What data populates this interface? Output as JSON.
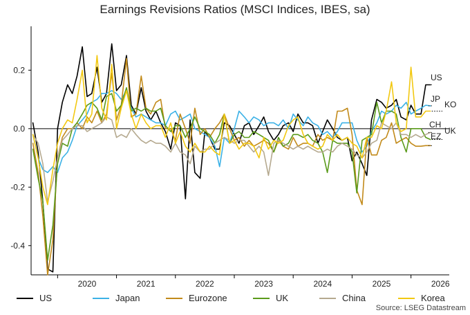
{
  "chart_data": {
    "type": "line",
    "title": "Earnings Revisions Ratios (MSCI Indices, IBES, sa)",
    "source": "Source: LSEG Datastream",
    "xlabel": "",
    "ylabel": "",
    "ylim": [
      -0.5,
      0.35
    ],
    "yticks": [
      0.2,
      0.0,
      -0.2,
      -0.4
    ],
    "ytick_labels": [
      "0.2",
      "0.0",
      "-0.2",
      "-0.4"
    ],
    "xlim": [
      2019.55,
      2026.65
    ],
    "xticks": [
      2020,
      2021,
      2022,
      2023,
      2024,
      2025,
      2026
    ],
    "xtick_labels": [
      "2020",
      "2021",
      "2022",
      "2023",
      "2024",
      "2025",
      "2026"
    ],
    "grid": false,
    "legend": "bottom",
    "end_labels": [
      {
        "text": "US",
        "y": 0.15
      },
      {
        "text": "JP",
        "y": 0.078
      },
      {
        "text": "KO",
        "y": 0.06
      },
      {
        "text": "CH",
        "y": -0.013
      },
      {
        "text": "UK",
        "y": -0.037
      },
      {
        "text": "EZ",
        "y": -0.058
      }
    ],
    "series": [
      {
        "name": "US",
        "color": "#000000",
        "x": [
          2019.58,
          2019.67,
          2019.75,
          2019.83,
          2019.92,
          2020.0,
          2020.08,
          2020.17,
          2020.25,
          2020.33,
          2020.42,
          2020.5,
          2020.58,
          2020.67,
          2020.75,
          2020.83,
          2020.92,
          2021.0,
          2021.08,
          2021.17,
          2021.25,
          2021.33,
          2021.42,
          2021.5,
          2021.58,
          2021.67,
          2021.75,
          2021.83,
          2021.92,
          2022.0,
          2022.08,
          2022.17,
          2022.25,
          2022.33,
          2022.42,
          2022.5,
          2022.58,
          2022.67,
          2022.75,
          2022.83,
          2022.92,
          2023.0,
          2023.08,
          2023.17,
          2023.25,
          2023.33,
          2023.42,
          2023.5,
          2023.58,
          2023.67,
          2023.75,
          2023.83,
          2023.92,
          2024.0,
          2024.08,
          2024.17,
          2024.25,
          2024.33,
          2024.42,
          2024.5,
          2024.58,
          2024.67,
          2024.75,
          2024.83,
          2024.92,
          2025.0,
          2025.08,
          2025.17,
          2025.25,
          2025.33,
          2025.42,
          2025.5,
          2025.58,
          2025.67,
          2025.75,
          2025.83,
          2025.92,
          2026.0,
          2026.08,
          2026.17,
          2026.25,
          2026.33
        ],
        "values": [
          0.02,
          -0.08,
          -0.25,
          -0.48,
          -0.49,
          0.0,
          0.09,
          0.15,
          0.12,
          0.18,
          0.28,
          0.11,
          0.12,
          0.21,
          0.09,
          0.12,
          0.29,
          0.13,
          0.15,
          0.25,
          0.08,
          0.05,
          0.14,
          0.06,
          0.03,
          0.06,
          0.02,
          -0.01,
          -0.07,
          0.02,
          0.01,
          -0.24,
          0.03,
          -0.15,
          -0.17,
          -0.01,
          -0.03,
          -0.07,
          -0.07,
          0.02,
          0.01,
          -0.02,
          -0.05,
          0.01,
          0.02,
          -0.02,
          0.01,
          0.04,
          -0.01,
          -0.04,
          -0.02,
          0.01,
          0.02,
          -0.01,
          0.05,
          0.02,
          0.02,
          0.01,
          -0.05,
          -0.01,
          0.03,
          0.0,
          -0.03,
          -0.04,
          -0.03,
          -0.11,
          -0.08,
          -0.12,
          -0.16,
          0.03,
          0.1,
          0.09,
          0.07,
          0.08,
          0.1,
          0.04,
          0.03,
          0.08,
          0.05,
          0.05,
          0.15,
          0.15
        ]
      },
      {
        "name": "Japan",
        "color": "#3bb1e6",
        "x": [
          2019.58,
          2019.67,
          2019.75,
          2019.83,
          2019.92,
          2020.0,
          2020.08,
          2020.17,
          2020.25,
          2020.33,
          2020.42,
          2020.5,
          2020.58,
          2020.67,
          2020.75,
          2020.83,
          2020.92,
          2021.0,
          2021.08,
          2021.17,
          2021.25,
          2021.33,
          2021.42,
          2021.5,
          2021.58,
          2021.67,
          2021.75,
          2021.83,
          2021.92,
          2022.0,
          2022.08,
          2022.17,
          2022.25,
          2022.33,
          2022.42,
          2022.5,
          2022.58,
          2022.67,
          2022.75,
          2022.83,
          2022.92,
          2023.0,
          2023.08,
          2023.17,
          2023.25,
          2023.33,
          2023.42,
          2023.5,
          2023.58,
          2023.67,
          2023.75,
          2023.83,
          2023.92,
          2024.0,
          2024.08,
          2024.17,
          2024.25,
          2024.33,
          2024.42,
          2024.5,
          2024.58,
          2024.67,
          2024.75,
          2024.83,
          2024.92,
          2025.0,
          2025.08,
          2025.17,
          2025.25,
          2025.33,
          2025.42,
          2025.5,
          2025.58,
          2025.67,
          2025.75,
          2025.83,
          2025.92,
          2026.0,
          2026.08,
          2026.17,
          2026.25,
          2026.33
        ],
        "values": [
          -0.02,
          -0.1,
          -0.14,
          -0.15,
          -0.13,
          -0.15,
          -0.1,
          -0.08,
          -0.04,
          0.01,
          0.03,
          0.05,
          0.09,
          0.1,
          0.12,
          0.12,
          0.13,
          0.12,
          0.1,
          0.13,
          0.07,
          0.04,
          0.05,
          0.04,
          0.03,
          0.02,
          0.02,
          0.01,
          0.05,
          0.06,
          0.03,
          0.04,
          0.05,
          0.0,
          -0.01,
          -0.02,
          -0.03,
          -0.06,
          -0.13,
          -0.03,
          -0.05,
          0.0,
          0.06,
          0.04,
          0.02,
          0.04,
          0.03,
          0.01,
          0.02,
          0.02,
          0.01,
          0.03,
          0.0,
          0.05,
          0.03,
          0.01,
          0.04,
          0.02,
          0.01,
          -0.02,
          -0.01,
          -0.03,
          -0.01,
          0.02,
          0.02,
          0.02,
          -0.04,
          -0.08,
          -0.06,
          -0.01,
          0.02,
          0.06,
          0.05,
          0.06,
          0.08,
          0.07,
          0.09,
          0.05,
          0.06,
          0.07,
          0.08,
          0.078
        ]
      },
      {
        "name": "Eurozone",
        "color": "#c28a1a",
        "x": [
          2019.58,
          2019.67,
          2019.75,
          2019.83,
          2019.92,
          2020.0,
          2020.08,
          2020.17,
          2020.25,
          2020.33,
          2020.42,
          2020.5,
          2020.58,
          2020.67,
          2020.75,
          2020.83,
          2020.92,
          2021.0,
          2021.08,
          2021.17,
          2021.25,
          2021.33,
          2021.42,
          2021.5,
          2021.58,
          2021.67,
          2021.75,
          2021.83,
          2021.92,
          2022.0,
          2022.08,
          2022.17,
          2022.25,
          2022.33,
          2022.42,
          2022.5,
          2022.58,
          2022.67,
          2022.75,
          2022.83,
          2022.92,
          2023.0,
          2023.08,
          2023.17,
          2023.25,
          2023.33,
          2023.42,
          2023.5,
          2023.58,
          2023.67,
          2023.75,
          2023.83,
          2023.92,
          2024.0,
          2024.08,
          2024.17,
          2024.25,
          2024.33,
          2024.42,
          2024.5,
          2024.58,
          2024.67,
          2024.75,
          2024.83,
          2024.92,
          2025.0,
          2025.08,
          2025.17,
          2025.25,
          2025.33,
          2025.42,
          2025.5,
          2025.58,
          2025.67,
          2025.75,
          2025.83,
          2025.92,
          2026.0,
          2026.08,
          2026.17,
          2026.25,
          2026.33
        ],
        "values": [
          -0.05,
          -0.15,
          -0.3,
          -0.5,
          -0.38,
          -0.1,
          -0.03,
          0.0,
          0.0,
          0.02,
          0.0,
          0.04,
          0.02,
          0.06,
          0.02,
          0.05,
          0.19,
          0.03,
          0.08,
          0.24,
          0.04,
          0.05,
          0.18,
          0.07,
          0.05,
          0.09,
          0.1,
          0.0,
          0.0,
          -0.04,
          0.05,
          0.0,
          -0.05,
          0.07,
          -0.02,
          0.0,
          -0.03,
          0.0,
          0.02,
          0.05,
          0.0,
          -0.04,
          -0.03,
          -0.06,
          -0.04,
          -0.06,
          -0.05,
          -0.04,
          -0.05,
          -0.08,
          -0.04,
          -0.06,
          -0.07,
          -0.03,
          -0.06,
          -0.05,
          -0.05,
          -0.06,
          -0.02,
          -0.04,
          -0.03,
          -0.04,
          0.06,
          0.06,
          0.07,
          -0.02,
          -0.21,
          -0.26,
          -0.03,
          -0.09,
          -0.09,
          -0.04,
          -0.03,
          0.02,
          -0.05,
          -0.04,
          -0.03,
          -0.05,
          -0.06,
          -0.06,
          -0.058,
          -0.058
        ]
      },
      {
        "name": "UK",
        "color": "#5a9a1a",
        "x": [
          2019.58,
          2019.67,
          2019.75,
          2019.83,
          2019.92,
          2020.0,
          2020.08,
          2020.17,
          2020.25,
          2020.33,
          2020.42,
          2020.5,
          2020.58,
          2020.67,
          2020.75,
          2020.83,
          2020.92,
          2021.0,
          2021.08,
          2021.17,
          2021.25,
          2021.33,
          2021.42,
          2021.5,
          2021.58,
          2021.67,
          2021.75,
          2021.83,
          2021.92,
          2022.0,
          2022.08,
          2022.17,
          2022.25,
          2022.33,
          2022.42,
          2022.5,
          2022.58,
          2022.67,
          2022.75,
          2022.83,
          2022.92,
          2023.0,
          2023.08,
          2023.17,
          2023.25,
          2023.33,
          2023.42,
          2023.5,
          2023.58,
          2023.67,
          2023.75,
          2023.83,
          2023.92,
          2024.0,
          2024.08,
          2024.17,
          2024.25,
          2024.33,
          2024.42,
          2024.5,
          2024.58,
          2024.67,
          2024.75,
          2024.83,
          2024.92,
          2025.0,
          2025.08,
          2025.17,
          2025.25,
          2025.33,
          2025.42,
          2025.5,
          2025.58,
          2025.67,
          2025.75,
          2025.83,
          2025.92,
          2026.0,
          2026.08,
          2026.17,
          2026.25,
          2026.33
        ],
        "values": [
          -0.07,
          -0.17,
          -0.25,
          -0.45,
          -0.33,
          -0.12,
          -0.05,
          -0.06,
          0.0,
          0.02,
          0.05,
          0.08,
          0.09,
          0.07,
          0.03,
          0.11,
          0.12,
          0.06,
          0.08,
          0.14,
          0.06,
          0.07,
          0.06,
          0.07,
          0.06,
          0.06,
          0.07,
          0.01,
          -0.01,
          0.01,
          0.01,
          -0.03,
          0.0,
          0.04,
          0.0,
          -0.01,
          -0.02,
          -0.05,
          -0.02,
          0.05,
          -0.05,
          -0.02,
          -0.01,
          -0.03,
          -0.03,
          -0.01,
          -0.02,
          -0.03,
          -0.04,
          -0.08,
          -0.03,
          -0.06,
          -0.05,
          -0.02,
          -0.02,
          -0.03,
          -0.02,
          -0.04,
          -0.05,
          -0.08,
          -0.15,
          -0.04,
          -0.05,
          -0.05,
          -0.05,
          -0.08,
          -0.22,
          -0.04,
          -0.03,
          -0.02,
          0.09,
          0.02,
          0.06,
          0.06,
          0.05,
          -0.03,
          -0.08,
          0.0,
          0.0,
          0.0,
          -0.03,
          -0.037
        ]
      },
      {
        "name": "China",
        "color": "#b5a98f",
        "x": [
          2019.58,
          2019.67,
          2019.75,
          2019.83,
          2019.92,
          2020.0,
          2020.08,
          2020.17,
          2020.25,
          2020.33,
          2020.42,
          2020.5,
          2020.58,
          2020.67,
          2020.75,
          2020.83,
          2020.92,
          2021.0,
          2021.08,
          2021.17,
          2021.25,
          2021.33,
          2021.42,
          2021.5,
          2021.58,
          2021.67,
          2021.75,
          2021.83,
          2021.92,
          2022.0,
          2022.08,
          2022.17,
          2022.25,
          2022.33,
          2022.42,
          2022.5,
          2022.58,
          2022.67,
          2022.75,
          2022.83,
          2022.92,
          2023.0,
          2023.08,
          2023.17,
          2023.25,
          2023.33,
          2023.42,
          2023.5,
          2023.58,
          2023.67,
          2023.75,
          2023.83,
          2023.92,
          2024.0,
          2024.08,
          2024.17,
          2024.25,
          2024.33,
          2024.42,
          2024.5,
          2024.58,
          2024.67,
          2024.75,
          2024.83,
          2024.92,
          2025.0,
          2025.08,
          2025.17,
          2025.25,
          2025.33,
          2025.42,
          2025.5,
          2025.58,
          2025.67,
          2025.75,
          2025.83,
          2025.92,
          2026.0,
          2026.08,
          2026.17,
          2026.25,
          2026.33
        ],
        "values": [
          -0.02,
          -0.05,
          -0.12,
          -0.25,
          -0.18,
          -0.1,
          -0.04,
          -0.02,
          0.0,
          0.01,
          0.01,
          -0.01,
          0.0,
          0.01,
          0.02,
          0.04,
          0.03,
          -0.03,
          -0.02,
          -0.03,
          0.0,
          -0.02,
          -0.04,
          -0.05,
          -0.04,
          -0.05,
          -0.05,
          -0.06,
          -0.08,
          -0.05,
          -0.08,
          -0.09,
          -0.12,
          -0.06,
          -0.08,
          -0.07,
          -0.07,
          -0.05,
          -0.04,
          -0.03,
          -0.04,
          -0.05,
          -0.04,
          -0.04,
          -0.06,
          -0.08,
          -0.06,
          -0.08,
          -0.16,
          -0.05,
          -0.04,
          -0.05,
          -0.06,
          -0.07,
          -0.06,
          -0.07,
          -0.06,
          -0.07,
          -0.08,
          -0.08,
          -0.07,
          -0.08,
          -0.06,
          -0.05,
          -0.06,
          -0.07,
          -0.09,
          -0.1,
          -0.08,
          -0.05,
          -0.04,
          0.02,
          0.01,
          0.0,
          0.02,
          -0.02,
          -0.02,
          -0.03,
          -0.02,
          -0.03,
          -0.02,
          -0.013
        ]
      },
      {
        "name": "Korea",
        "color": "#f2c811",
        "x": [
          2019.58,
          2019.67,
          2019.75,
          2019.83,
          2019.92,
          2020.0,
          2020.08,
          2020.17,
          2020.25,
          2020.33,
          2020.42,
          2020.5,
          2020.58,
          2020.67,
          2020.75,
          2020.83,
          2020.92,
          2021.0,
          2021.08,
          2021.17,
          2021.25,
          2021.33,
          2021.42,
          2021.5,
          2021.58,
          2021.67,
          2021.75,
          2021.83,
          2021.92,
          2022.0,
          2022.08,
          2022.17,
          2022.25,
          2022.33,
          2022.42,
          2022.5,
          2022.58,
          2022.67,
          2022.75,
          2022.83,
          2022.92,
          2023.0,
          2023.08,
          2023.17,
          2023.25,
          2023.33,
          2023.42,
          2023.5,
          2023.58,
          2023.67,
          2023.75,
          2023.83,
          2023.92,
          2024.0,
          2024.08,
          2024.17,
          2024.25,
          2024.33,
          2024.42,
          2024.5,
          2024.58,
          2024.67,
          2024.75,
          2024.83,
          2024.92,
          2025.0,
          2025.08,
          2025.17,
          2025.25,
          2025.33,
          2025.42,
          2025.5,
          2025.58,
          2025.67,
          2025.75,
          2025.83,
          2025.92,
          2026.0,
          2026.08,
          2026.17,
          2026.25,
          2026.33
        ],
        "values": [
          -0.02,
          -0.1,
          -0.2,
          -0.26,
          -0.14,
          -0.05,
          0.0,
          0.03,
          0.02,
          0.1,
          0.2,
          0.02,
          0.05,
          0.25,
          0.07,
          0.03,
          0.22,
          0.0,
          0.07,
          0.13,
          0.05,
          0.0,
          0.05,
          0.02,
          0.0,
          0.01,
          0.01,
          -0.03,
          0.02,
          -0.05,
          -0.01,
          -0.06,
          -0.08,
          -0.05,
          -0.08,
          -0.08,
          -0.06,
          -0.08,
          -0.09,
          0.05,
          -0.05,
          -0.04,
          -0.07,
          -0.05,
          -0.05,
          -0.06,
          -0.1,
          -0.03,
          -0.07,
          -0.04,
          -0.05,
          -0.04,
          0.01,
          0.03,
          0.04,
          -0.02,
          -0.05,
          -0.06,
          -0.07,
          -0.06,
          -0.02,
          -0.04,
          -0.02,
          -0.04,
          -0.03,
          -0.05,
          -0.06,
          -0.1,
          -0.03,
          -0.03,
          0.01,
          0.0,
          0.06,
          0.16,
          0.02,
          -0.01,
          0.0,
          0.21,
          0.04,
          0.04,
          0.06,
          0.06
        ]
      }
    ]
  }
}
